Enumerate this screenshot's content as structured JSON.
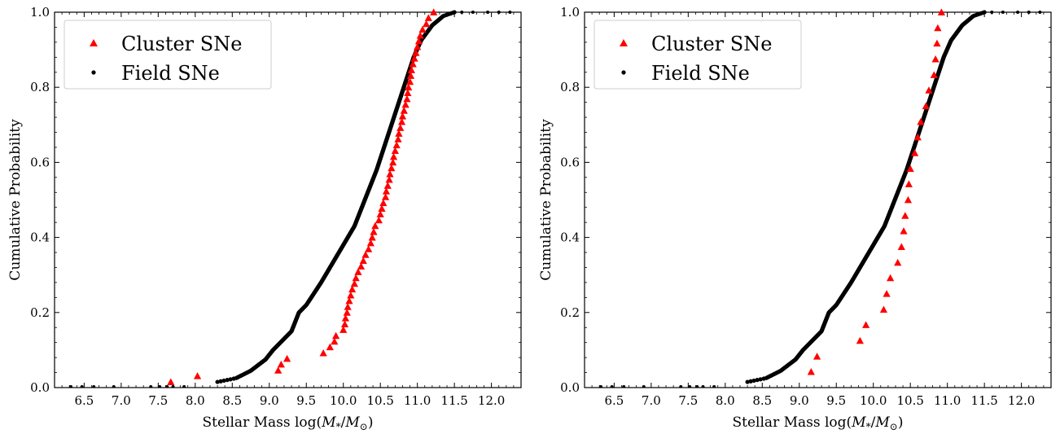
{
  "colors": {
    "cluster": "#ff0000",
    "field": "#000000",
    "legend_border": "#cccccc"
  },
  "chart_data": [
    {
      "type": "scatter",
      "title": "",
      "xlabel_prefix": "Stellar Mass log(",
      "xlabel_math": "M",
      "xlabel_sub": "*",
      "xlabel_mid": "/",
      "xlabel_math2": "M",
      "xlabel_sub2": "⊙",
      "xlabel_suffix": ")",
      "ylabel": "Cumulative Probability",
      "xlim": [
        6.1,
        12.4
      ],
      "ylim": [
        0.0,
        1.0
      ],
      "x_ticks": [
        6.5,
        7.0,
        7.5,
        8.0,
        8.5,
        9.0,
        9.5,
        10.0,
        10.5,
        11.0,
        11.5,
        12.0
      ],
      "x_tick_labels": [
        "6.5",
        "7.0",
        "7.5",
        "8.0",
        "8.5",
        "9.0",
        "9.5",
        "10.0",
        "10.5",
        "11.0",
        "11.5",
        "12.0"
      ],
      "y_ticks": [
        0.0,
        0.2,
        0.4,
        0.6,
        0.8,
        1.0
      ],
      "y_tick_labels": [
        "0.0",
        "0.2",
        "0.4",
        "0.6",
        "0.8",
        "1.0"
      ],
      "legend": {
        "position": "upper-left",
        "entries": [
          {
            "label": "Cluster SNe",
            "marker": "triangle"
          },
          {
            "label": "Field SNe",
            "marker": "dot"
          }
        ]
      },
      "series": [
        {
          "name": "Cluster SNe",
          "marker": "triangle",
          "points": [
            [
              7.67,
              0.015
            ],
            [
              8.03,
              0.031
            ],
            [
              9.12,
              0.046
            ],
            [
              9.16,
              0.062
            ],
            [
              9.24,
              0.077
            ],
            [
              9.73,
              0.092
            ],
            [
              9.82,
              0.108
            ],
            [
              9.88,
              0.123
            ],
            [
              9.9,
              0.138
            ],
            [
              10.0,
              0.154
            ],
            [
              10.02,
              0.169
            ],
            [
              10.03,
              0.185
            ],
            [
              10.05,
              0.2
            ],
            [
              10.06,
              0.215
            ],
            [
              10.08,
              0.231
            ],
            [
              10.1,
              0.246
            ],
            [
              10.12,
              0.262
            ],
            [
              10.15,
              0.277
            ],
            [
              10.17,
              0.292
            ],
            [
              10.2,
              0.308
            ],
            [
              10.24,
              0.323
            ],
            [
              10.27,
              0.338
            ],
            [
              10.3,
              0.354
            ],
            [
              10.34,
              0.369
            ],
            [
              10.37,
              0.385
            ],
            [
              10.39,
              0.4
            ],
            [
              10.41,
              0.415
            ],
            [
              10.43,
              0.431
            ],
            [
              10.48,
              0.446
            ],
            [
              10.5,
              0.462
            ],
            [
              10.52,
              0.477
            ],
            [
              10.54,
              0.492
            ],
            [
              10.57,
              0.508
            ],
            [
              10.58,
              0.523
            ],
            [
              10.6,
              0.538
            ],
            [
              10.62,
              0.554
            ],
            [
              10.63,
              0.569
            ],
            [
              10.65,
              0.585
            ],
            [
              10.67,
              0.6
            ],
            [
              10.68,
              0.615
            ],
            [
              10.7,
              0.631
            ],
            [
              10.72,
              0.646
            ],
            [
              10.74,
              0.662
            ],
            [
              10.75,
              0.677
            ],
            [
              10.77,
              0.692
            ],
            [
              10.79,
              0.708
            ],
            [
              10.8,
              0.723
            ],
            [
              10.82,
              0.738
            ],
            [
              10.84,
              0.754
            ],
            [
              10.86,
              0.769
            ],
            [
              10.87,
              0.785
            ],
            [
              10.88,
              0.8
            ],
            [
              10.9,
              0.815
            ],
            [
              10.91,
              0.831
            ],
            [
              10.92,
              0.846
            ],
            [
              10.94,
              0.862
            ],
            [
              10.96,
              0.877
            ],
            [
              10.98,
              0.892
            ],
            [
              11.0,
              0.908
            ],
            [
              11.02,
              0.923
            ],
            [
              11.04,
              0.938
            ],
            [
              11.07,
              0.954
            ],
            [
              11.12,
              0.969
            ],
            [
              11.15,
              0.985
            ],
            [
              11.22,
              1.0
            ]
          ]
        },
        {
          "name": "Field SNe",
          "marker": "dot",
          "curve": [
            [
              6.3,
              0.0
            ],
            [
              7.5,
              0.002
            ],
            [
              7.9,
              0.008
            ],
            [
              8.3,
              0.015
            ],
            [
              8.55,
              0.025
            ],
            [
              8.75,
              0.045
            ],
            [
              8.95,
              0.075
            ],
            [
              9.05,
              0.1
            ],
            [
              9.3,
              0.15
            ],
            [
              9.4,
              0.2
            ],
            [
              9.5,
              0.22
            ],
            [
              9.7,
              0.28
            ],
            [
              9.85,
              0.33
            ],
            [
              10.0,
              0.38
            ],
            [
              10.15,
              0.43
            ],
            [
              10.25,
              0.48
            ],
            [
              10.35,
              0.53
            ],
            [
              10.45,
              0.58
            ],
            [
              10.55,
              0.64
            ],
            [
              10.65,
              0.7
            ],
            [
              10.75,
              0.76
            ],
            [
              10.85,
              0.82
            ],
            [
              10.95,
              0.88
            ],
            [
              11.05,
              0.925
            ],
            [
              11.2,
              0.965
            ],
            [
              11.35,
              0.99
            ],
            [
              11.5,
              1.0
            ]
          ],
          "tail_low": [
            6.32,
            6.47,
            6.63,
            6.9,
            7.4,
            7.52,
            7.62,
            7.7,
            7.85
          ],
          "tail_high": [
            11.6,
            11.75,
            11.95,
            12.1,
            12.25
          ]
        }
      ]
    },
    {
      "type": "scatter",
      "title": "",
      "xlabel_prefix": "Stellar Mass log(",
      "xlabel_math": "M",
      "xlabel_sub": "*",
      "xlabel_mid": "/",
      "xlabel_math2": "M",
      "xlabel_sub2": "⊙",
      "xlabel_suffix": ")",
      "ylabel": "Cumulative Probability",
      "xlim": [
        6.1,
        12.4
      ],
      "ylim": [
        0.0,
        1.0
      ],
      "x_ticks": [
        6.5,
        7.0,
        7.5,
        8.0,
        8.5,
        9.0,
        9.5,
        10.0,
        10.5,
        11.0,
        11.5,
        12.0
      ],
      "x_tick_labels": [
        "6.5",
        "7.0",
        "7.5",
        "8.0",
        "8.5",
        "9.0",
        "9.5",
        "10.0",
        "10.5",
        "11.0",
        "11.5",
        "12.0"
      ],
      "y_ticks": [
        0.0,
        0.2,
        0.4,
        0.6,
        0.8,
        1.0
      ],
      "y_tick_labels": [
        "0.0",
        "0.2",
        "0.4",
        "0.6",
        "0.8",
        "1.0"
      ],
      "legend": {
        "position": "upper-left",
        "entries": [
          {
            "label": "Cluster SNe",
            "marker": "triangle"
          },
          {
            "label": "Field SNe",
            "marker": "dot"
          }
        ]
      },
      "series": [
        {
          "name": "Cluster SNe",
          "marker": "triangle",
          "points": [
            [
              9.16,
              0.042
            ],
            [
              9.24,
              0.083
            ],
            [
              9.82,
              0.125
            ],
            [
              9.9,
              0.167
            ],
            [
              10.14,
              0.208
            ],
            [
              10.18,
              0.25
            ],
            [
              10.23,
              0.292
            ],
            [
              10.33,
              0.333
            ],
            [
              10.38,
              0.375
            ],
            [
              10.41,
              0.417
            ],
            [
              10.43,
              0.458
            ],
            [
              10.47,
              0.5
            ],
            [
              10.48,
              0.542
            ],
            [
              10.5,
              0.583
            ],
            [
              10.56,
              0.625
            ],
            [
              10.6,
              0.667
            ],
            [
              10.64,
              0.708
            ],
            [
              10.71,
              0.75
            ],
            [
              10.75,
              0.792
            ],
            [
              10.82,
              0.833
            ],
            [
              10.84,
              0.875
            ],
            [
              10.86,
              0.917
            ],
            [
              10.87,
              0.958
            ],
            [
              10.92,
              1.0
            ]
          ]
        },
        {
          "name": "Field SNe",
          "marker": "dot",
          "curve": [
            [
              6.3,
              0.0
            ],
            [
              7.5,
              0.002
            ],
            [
              7.9,
              0.008
            ],
            [
              8.3,
              0.015
            ],
            [
              8.55,
              0.025
            ],
            [
              8.75,
              0.045
            ],
            [
              8.95,
              0.075
            ],
            [
              9.05,
              0.1
            ],
            [
              9.3,
              0.15
            ],
            [
              9.4,
              0.2
            ],
            [
              9.5,
              0.22
            ],
            [
              9.7,
              0.28
            ],
            [
              9.85,
              0.33
            ],
            [
              10.0,
              0.38
            ],
            [
              10.15,
              0.43
            ],
            [
              10.25,
              0.48
            ],
            [
              10.35,
              0.53
            ],
            [
              10.45,
              0.58
            ],
            [
              10.55,
              0.64
            ],
            [
              10.65,
              0.7
            ],
            [
              10.75,
              0.76
            ],
            [
              10.85,
              0.82
            ],
            [
              10.95,
              0.88
            ],
            [
              11.05,
              0.925
            ],
            [
              11.2,
              0.965
            ],
            [
              11.35,
              0.99
            ],
            [
              11.5,
              1.0
            ]
          ],
          "tail_low": [
            6.32,
            6.47,
            6.63,
            6.9,
            7.4,
            7.52,
            7.62,
            7.7,
            7.85
          ],
          "tail_high": [
            11.6,
            11.75,
            11.95,
            12.1,
            12.25
          ]
        }
      ]
    }
  ]
}
